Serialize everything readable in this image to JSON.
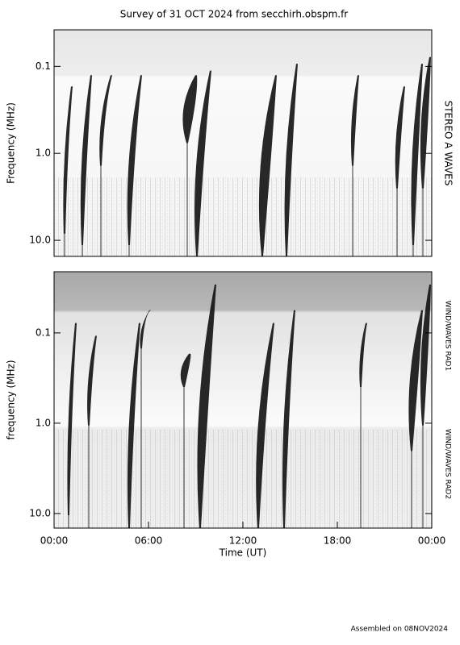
{
  "chart_data": [
    {
      "type": "spectrogram",
      "title": "Survey of 31 OCT 2024 from secchirh.obspm.fr",
      "y_label": "Frequency (MHz)",
      "right_labels": [
        "STEREO A WAVES"
      ],
      "y_log": true,
      "y_inverted": true,
      "ylim": [
        0.038,
        15.3
      ],
      "yticks": [
        0.1,
        {
          "value": 1,
          "label": "1.0"
        },
        {
          "value": 10,
          "label": "10.0"
        }
      ],
      "xlim": [
        0,
        24
      ]
    },
    {
      "type": "spectrogram",
      "y_label": "frequency (MHz)",
      "x_label": "Time (UT)",
      "right_labels": [
        "WIND/WAVES RAD1",
        "WIND/WAVES RAD2"
      ],
      "y_log": true,
      "y_inverted": true,
      "ylim": [
        0.021,
        14.5
      ],
      "yticks": [
        0.1,
        {
          "value": 1,
          "label": "1.0"
        },
        {
          "value": 10,
          "label": "10.0"
        }
      ],
      "xlim": [
        0,
        24
      ],
      "xticks": [
        {
          "value": 0,
          "label": "00:00"
        },
        {
          "value": 6,
          "label": "06:00"
        },
        {
          "value": 12,
          "label": "12:00"
        },
        {
          "value": 18,
          "label": "18:00"
        },
        {
          "value": 24,
          "label": "00:00"
        }
      ]
    }
  ],
  "footer": "Assembled on 08NOV2024"
}
